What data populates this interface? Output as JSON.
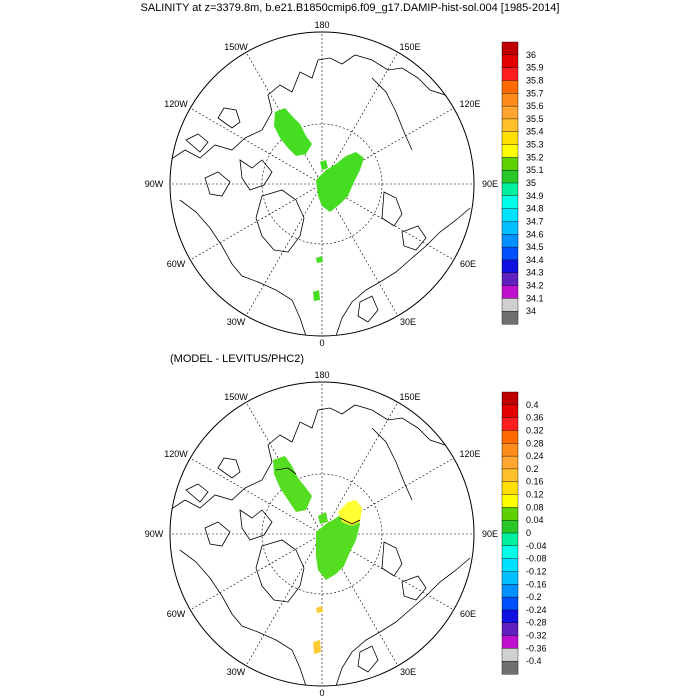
{
  "title": "SALINITY at z=3379.8m, b.e21.B1850cmip6.f09_g17.DAMIP-hist-sol.004 [1985-2014]",
  "subtitle": "(MODEL - LEVITUS/PHC2)",
  "map_labels": {
    "lon_180": "180",
    "lon_150w": "150W",
    "lon_150e": "150E",
    "lon_120w": "120W",
    "lon_120e": "120E",
    "lon_90w": "90W",
    "lon_90e": "90E",
    "lon_60w": "60W",
    "lon_60e": "60E",
    "lon_30w": "30W",
    "lon_30e": "30E",
    "lon_0": "0"
  },
  "colorbar_top": {
    "labels": [
      "36",
      "35.9",
      "35.8",
      "35.7",
      "35.6",
      "35.5",
      "35.4",
      "35.3",
      "35.2",
      "35.1",
      "35",
      "34.9",
      "34.8",
      "34.7",
      "34.6",
      "34.5",
      "34.4",
      "34.3",
      "34.2",
      "34.1",
      "34"
    ]
  },
  "colorbar_bottom": {
    "labels": [
      "0.4",
      "0.36",
      "0.32",
      "0.28",
      "0.24",
      "0.2",
      "0.16",
      "0.12",
      "0.08",
      "0.04",
      "0",
      "-0.04",
      "-0.08",
      "-0.12",
      "-0.16",
      "-0.2",
      "-0.24",
      "-0.28",
      "-0.32",
      "-0.36",
      "-0.4"
    ]
  },
  "colors": {
    "colorbar_top": [
      "#c00000",
      "#e20000",
      "#ff1e1e",
      "#ff6a00",
      "#ff8c1a",
      "#ffa530",
      "#ffc02a",
      "#ffe000",
      "#ffff00",
      "#5fd000",
      "#28c828",
      "#00f0a0",
      "#00ffe8",
      "#00e0ff",
      "#00c0ff",
      "#0090ff",
      "#0050ff",
      "#1010e0",
      "#6020c0",
      "#c010d0",
      "#d0d0d0",
      "#707070"
    ],
    "colorbar_bottom": [
      "#c00000",
      "#e20000",
      "#ff1e1e",
      "#ff6a00",
      "#ff8c1a",
      "#ffa530",
      "#ffc02a",
      "#ffe000",
      "#ffff00",
      "#5fd000",
      "#28c828",
      "#00f0a0",
      "#00ffe8",
      "#00e0ff",
      "#00c0ff",
      "#0090ff",
      "#0050ff",
      "#1010e0",
      "#6020c0",
      "#c010d0",
      "#d0d0d0",
      "#707070"
    ],
    "top_field": "#44dd22",
    "bottom_field_green": "#55dd22",
    "bottom_field_yellow": "#ffff33",
    "bottom_field_orange": "#ffcc33"
  }
}
